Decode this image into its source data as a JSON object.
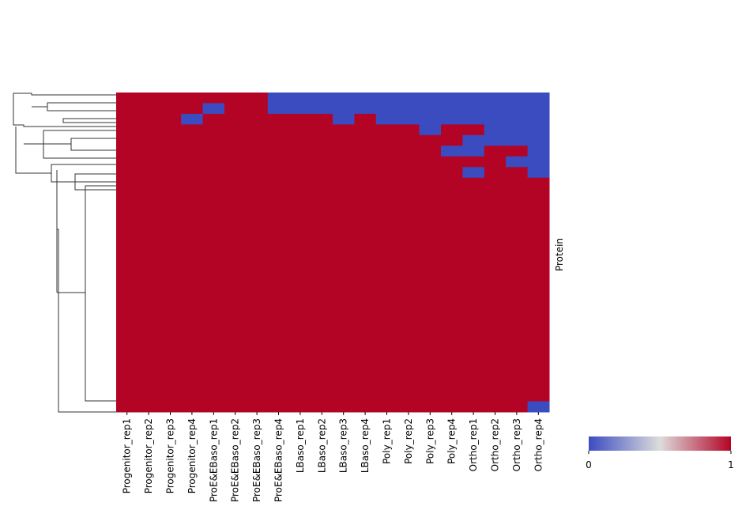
{
  "chart_data": {
    "type": "heatmap",
    "x_categories": [
      "Progenitor_rep1",
      "Progenitor_rep2",
      "Progenitor_rep3",
      "Progenitor_rep4",
      "ProE&EBaso_rep1",
      "ProE&EBaso_rep2",
      "ProE&EBaso_rep3",
      "ProE&EBaso_rep4",
      "LBaso_rep1",
      "LBaso_rep2",
      "LBaso_rep3",
      "LBaso_rep4",
      "Poly_rep1",
      "Poly_rep2",
      "Poly_rep3",
      "Poly_rep4",
      "Ortho_rep1",
      "Ortho_rep2",
      "Ortho_rep3",
      "Ortho_rep4"
    ],
    "ylabel": "Protein",
    "values": [
      [
        1,
        1,
        1,
        1,
        1,
        1,
        1,
        0,
        0,
        0,
        0,
        0,
        0,
        0,
        0,
        0,
        0,
        0,
        0,
        0
      ],
      [
        1,
        1,
        1,
        1,
        0,
        1,
        1,
        0,
        0,
        0,
        0,
        0,
        0,
        0,
        0,
        0,
        0,
        0,
        0,
        0
      ],
      [
        1,
        1,
        1,
        0,
        1,
        1,
        1,
        1,
        1,
        1,
        0,
        1,
        0,
        0,
        0,
        0,
        0,
        0,
        0,
        0
      ],
      [
        1,
        1,
        1,
        1,
        1,
        1,
        1,
        1,
        1,
        1,
        1,
        1,
        1,
        1,
        0,
        1,
        1,
        0,
        0,
        0
      ],
      [
        1,
        1,
        1,
        1,
        1,
        1,
        1,
        1,
        1,
        1,
        1,
        1,
        1,
        1,
        1,
        1,
        0,
        0,
        0,
        0
      ],
      [
        1,
        1,
        1,
        1,
        1,
        1,
        1,
        1,
        1,
        1,
        1,
        1,
        1,
        1,
        1,
        0,
        0,
        1,
        1,
        0
      ],
      [
        1,
        1,
        1,
        1,
        1,
        1,
        1,
        1,
        1,
        1,
        1,
        1,
        1,
        1,
        1,
        1,
        1,
        1,
        0,
        0
      ],
      [
        1,
        1,
        1,
        1,
        1,
        1,
        1,
        1,
        1,
        1,
        1,
        1,
        1,
        1,
        1,
        1,
        0,
        1,
        1,
        0
      ],
      [
        1,
        1,
        1,
        1,
        1,
        1,
        1,
        1,
        1,
        1,
        1,
        1,
        1,
        1,
        1,
        1,
        1,
        1,
        1,
        1
      ],
      [
        1,
        1,
        1,
        1,
        1,
        1,
        1,
        1,
        1,
        1,
        1,
        1,
        1,
        1,
        1,
        1,
        1,
        1,
        1,
        1
      ],
      [
        1,
        1,
        1,
        1,
        1,
        1,
        1,
        1,
        1,
        1,
        1,
        1,
        1,
        1,
        1,
        1,
        1,
        1,
        1,
        1
      ],
      [
        1,
        1,
        1,
        1,
        1,
        1,
        1,
        1,
        1,
        1,
        1,
        1,
        1,
        1,
        1,
        1,
        1,
        1,
        1,
        1
      ],
      [
        1,
        1,
        1,
        1,
        1,
        1,
        1,
        1,
        1,
        1,
        1,
        1,
        1,
        1,
        1,
        1,
        1,
        1,
        1,
        1
      ],
      [
        1,
        1,
        1,
        1,
        1,
        1,
        1,
        1,
        1,
        1,
        1,
        1,
        1,
        1,
        1,
        1,
        1,
        1,
        1,
        1
      ],
      [
        1,
        1,
        1,
        1,
        1,
        1,
        1,
        1,
        1,
        1,
        1,
        1,
        1,
        1,
        1,
        1,
        1,
        1,
        1,
        1
      ],
      [
        1,
        1,
        1,
        1,
        1,
        1,
        1,
        1,
        1,
        1,
        1,
        1,
        1,
        1,
        1,
        1,
        1,
        1,
        1,
        1
      ],
      [
        1,
        1,
        1,
        1,
        1,
        1,
        1,
        1,
        1,
        1,
        1,
        1,
        1,
        1,
        1,
        1,
        1,
        1,
        1,
        1
      ],
      [
        1,
        1,
        1,
        1,
        1,
        1,
        1,
        1,
        1,
        1,
        1,
        1,
        1,
        1,
        1,
        1,
        1,
        1,
        1,
        1
      ],
      [
        1,
        1,
        1,
        1,
        1,
        1,
        1,
        1,
        1,
        1,
        1,
        1,
        1,
        1,
        1,
        1,
        1,
        1,
        1,
        1
      ],
      [
        1,
        1,
        1,
        1,
        1,
        1,
        1,
        1,
        1,
        1,
        1,
        1,
        1,
        1,
        1,
        1,
        1,
        1,
        1,
        1
      ],
      [
        1,
        1,
        1,
        1,
        1,
        1,
        1,
        1,
        1,
        1,
        1,
        1,
        1,
        1,
        1,
        1,
        1,
        1,
        1,
        1
      ],
      [
        1,
        1,
        1,
        1,
        1,
        1,
        1,
        1,
        1,
        1,
        1,
        1,
        1,
        1,
        1,
        1,
        1,
        1,
        1,
        1
      ],
      [
        1,
        1,
        1,
        1,
        1,
        1,
        1,
        1,
        1,
        1,
        1,
        1,
        1,
        1,
        1,
        1,
        1,
        1,
        1,
        1
      ],
      [
        1,
        1,
        1,
        1,
        1,
        1,
        1,
        1,
        1,
        1,
        1,
        1,
        1,
        1,
        1,
        1,
        1,
        1,
        1,
        1
      ],
      [
        1,
        1,
        1,
        1,
        1,
        1,
        1,
        1,
        1,
        1,
        1,
        1,
        1,
        1,
        1,
        1,
        1,
        1,
        1,
        1
      ],
      [
        1,
        1,
        1,
        1,
        1,
        1,
        1,
        1,
        1,
        1,
        1,
        1,
        1,
        1,
        1,
        1,
        1,
        1,
        1,
        1
      ],
      [
        1,
        1,
        1,
        1,
        1,
        1,
        1,
        1,
        1,
        1,
        1,
        1,
        1,
        1,
        1,
        1,
        1,
        1,
        1,
        1
      ],
      [
        1,
        1,
        1,
        1,
        1,
        1,
        1,
        1,
        1,
        1,
        1,
        1,
        1,
        1,
        1,
        1,
        1,
        1,
        1,
        1
      ],
      [
        1,
        1,
        1,
        1,
        1,
        1,
        1,
        1,
        1,
        1,
        1,
        1,
        1,
        1,
        1,
        1,
        1,
        1,
        1,
        1
      ],
      [
        1,
        1,
        1,
        1,
        1,
        1,
        1,
        1,
        1,
        1,
        1,
        1,
        1,
        1,
        1,
        1,
        1,
        1,
        1,
        0
      ]
    ],
    "zlim": [
      0,
      1
    ],
    "zticks": [
      0,
      1
    ],
    "colors": [
      "#3b4cc0",
      "#dddcdc",
      "#b40426"
    ]
  }
}
